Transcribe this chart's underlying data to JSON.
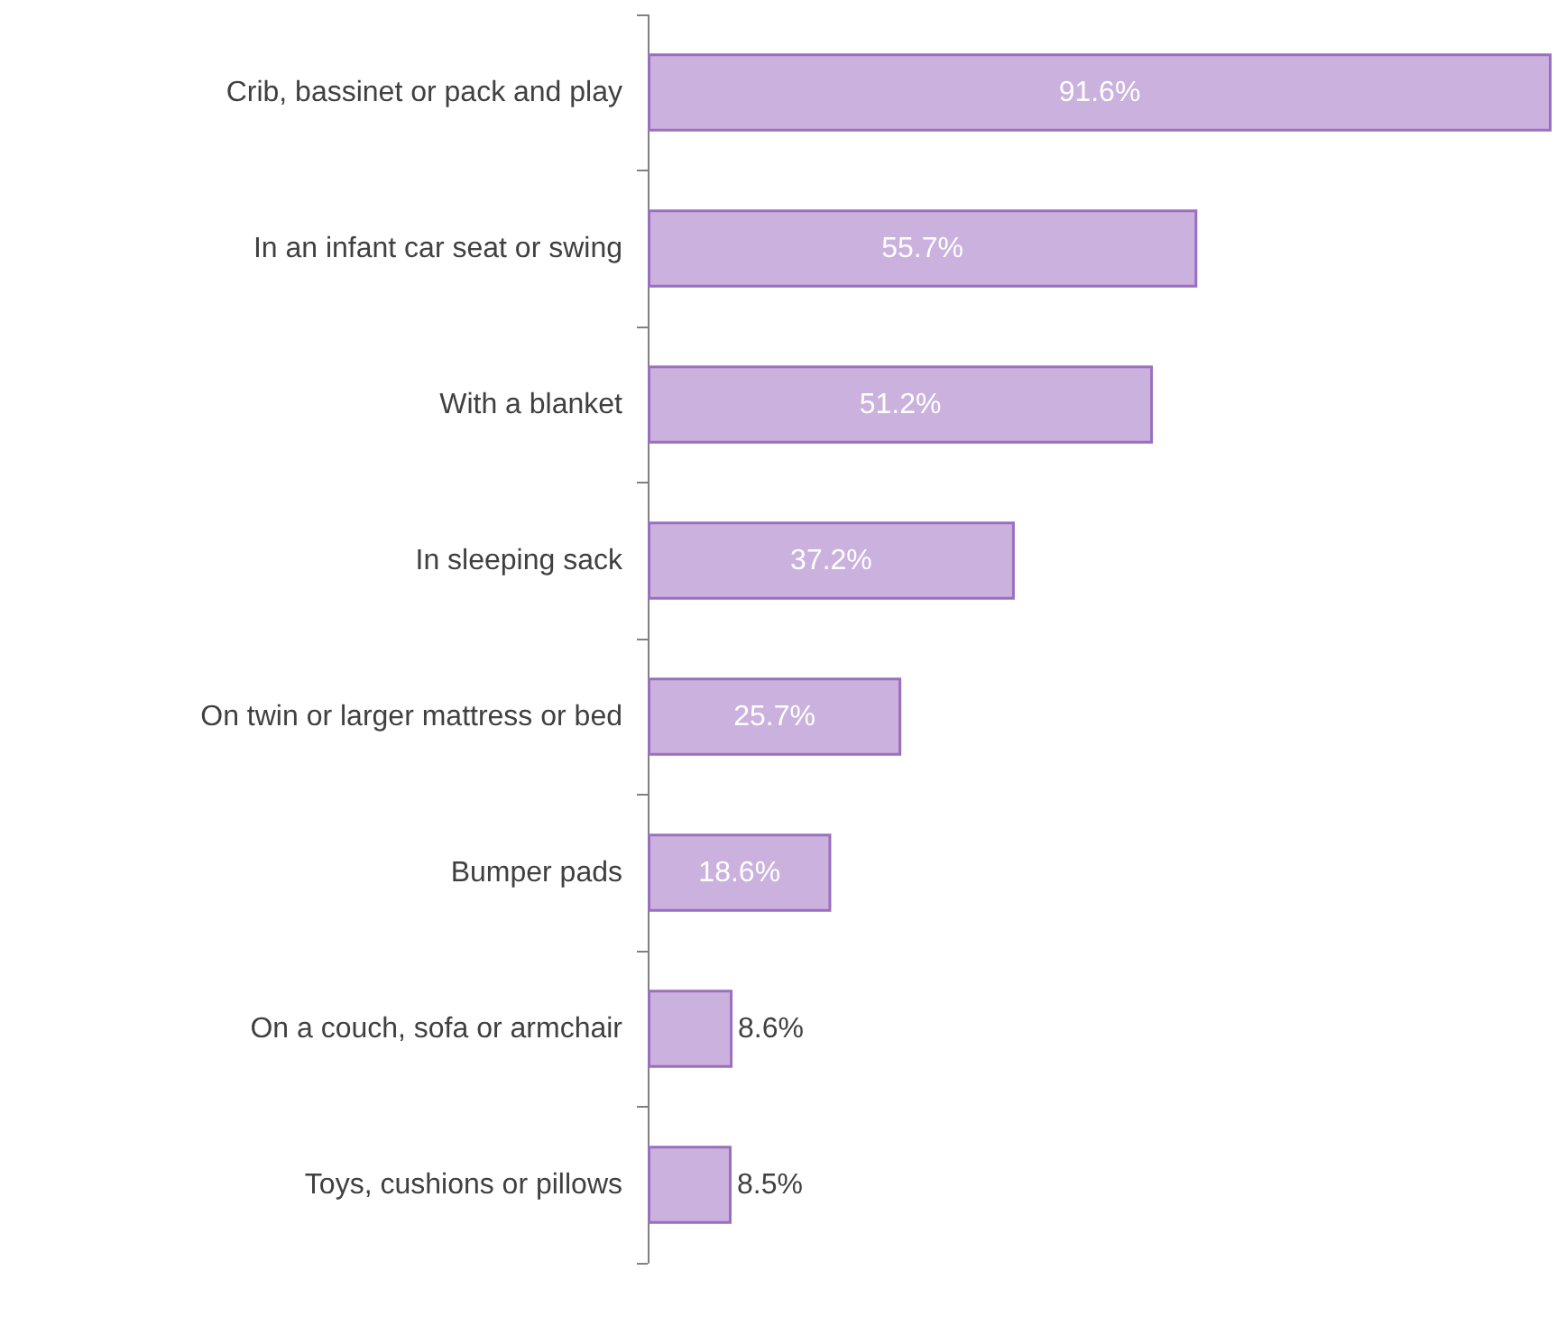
{
  "chart_data": {
    "type": "bar",
    "orientation": "horizontal",
    "categories": [
      "Crib, bassinet or pack and play",
      "In an infant car seat or swing",
      "With a blanket",
      "In sleeping sack",
      "On twin or larger mattress or bed",
      "Bumper pads",
      "On a couch, sofa or armchair",
      "Toys, cushions or pillows"
    ],
    "values": [
      91.6,
      55.7,
      51.2,
      37.2,
      25.7,
      18.6,
      8.6,
      8.5
    ],
    "value_labels": [
      "91.6%",
      "55.7%",
      "51.2%",
      "37.2%",
      "25.7%",
      "18.6%",
      "8.6%",
      "8.5%"
    ],
    "color": "#cbb2de"
  }
}
